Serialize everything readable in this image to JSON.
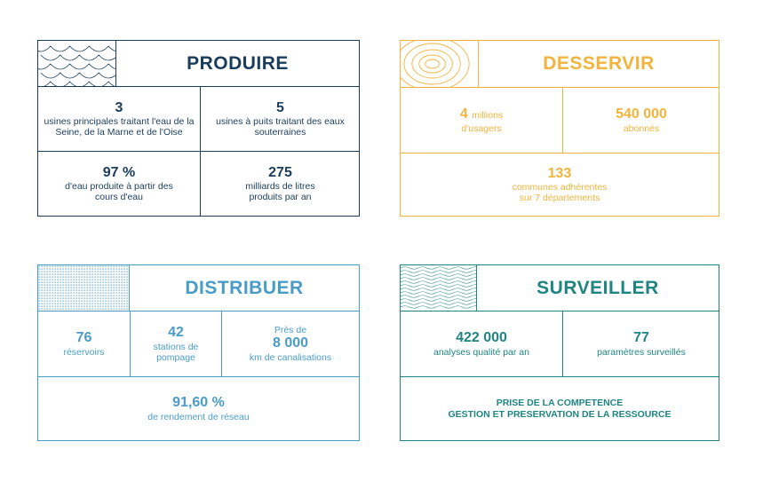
{
  "colors": {
    "produire": "#1a3d5c",
    "desservir": "#f2b43c",
    "distribuer": "#4a9cc8",
    "surveiller": "#1f8582"
  },
  "produire": {
    "title": "PRODUIRE",
    "pattern_icon": "waves-scales-icon",
    "stats": [
      {
        "value": "3",
        "text": "usines principales traitant l'eau de la Seine, de la Marne et de l'Oise"
      },
      {
        "value": "5",
        "text": "usines à puits traitant des eaux souterraines"
      },
      {
        "value": "97 %",
        "text": "d'eau produite à partir des cours d'eau"
      },
      {
        "value": "275",
        "text": "milliards de litres produits par an"
      }
    ]
  },
  "desservir": {
    "title": "DESSERVIR",
    "pattern_icon": "concentric-rings-icon",
    "stats": [
      {
        "value": "4",
        "unit": "millions",
        "text": "d'usagers"
      },
      {
        "value": "540 000",
        "text": "abonnés"
      },
      {
        "value": "133",
        "text": "communes adhérentes sur 7 départements"
      }
    ]
  },
  "distribuer": {
    "title": "DISTRIBUER",
    "pattern_icon": "dot-grid-icon",
    "stats": [
      {
        "value": "76",
        "text": "réservoirs"
      },
      {
        "value": "42",
        "text": "stations de pompage"
      },
      {
        "prefix": "Près de",
        "value": "8 000",
        "text": "km de canalisations"
      },
      {
        "value": "91,60 %",
        "text": "de rendement de réseau"
      }
    ]
  },
  "surveiller": {
    "title": "SURVEILLER",
    "pattern_icon": "wavy-lines-icon",
    "stats": [
      {
        "value": "422 000",
        "text": "analyses qualité par an"
      },
      {
        "value": "77",
        "text": "paramètres surveillés"
      }
    ],
    "banner_line1": "PRISE DE LA COMPETENCE",
    "banner_line2": "GESTION ET PRESERVATION DE LA RESSOURCE"
  }
}
